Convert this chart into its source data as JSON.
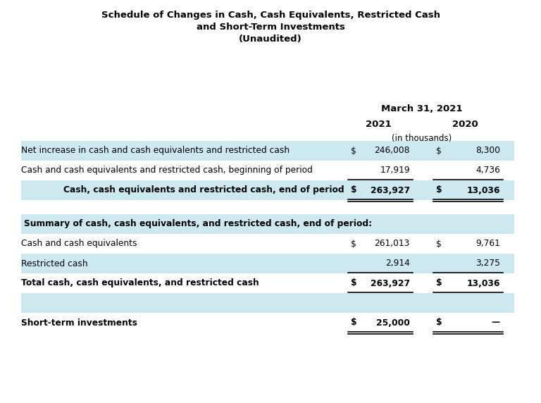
{
  "title_lines": [
    "Schedule of Changes in Cash, Cash Equivalents, Restricted Cash",
    "and Short-Term Investments",
    "(Unaudited)"
  ],
  "header_date": "March 31, 2021",
  "col_headers": [
    "2021",
    "2020"
  ],
  "col_subheader": "(in thousands)",
  "background_color": "#ffffff",
  "light_blue": "#cce8f0",
  "section1_rows": [
    {
      "label": "Net increase in cash and cash equivalents and restricted cash",
      "val2021_dollar": "$",
      "val2021_num": "246,008",
      "val2020_dollar": "$",
      "val2020_num": "8,300",
      "bold": false,
      "bg": "#cce8f0",
      "underline": false,
      "double_underline": false,
      "indent": false
    },
    {
      "label": "Cash and cash equivalents and restricted cash, beginning of period",
      "val2021_dollar": "",
      "val2021_num": "17,919",
      "val2020_dollar": "",
      "val2020_num": "4,736",
      "bold": false,
      "bg": "#ffffff",
      "underline": true,
      "double_underline": false,
      "indent": false
    },
    {
      "label": "Cash, cash equivalents and restricted cash, end of period",
      "val2021_dollar": "$",
      "val2021_num": "263,927",
      "val2020_dollar": "$",
      "val2020_num": "13,036",
      "bold": true,
      "bg": "#cce8f0",
      "underline": false,
      "double_underline": true,
      "indent": true
    }
  ],
  "section2_header": "Summary of cash, cash equivalents, and restricted cash, end of period:",
  "section2_rows": [
    {
      "label": "Cash and cash equivalents",
      "val2021_dollar": "$",
      "val2021_num": "261,013",
      "val2020_dollar": "$",
      "val2020_num": "9,761",
      "bold": false,
      "bg": "#ffffff",
      "underline": false,
      "double_underline": false,
      "indent": false
    },
    {
      "label": "Restricted cash",
      "val2021_dollar": "",
      "val2021_num": "2,914",
      "val2020_dollar": "",
      "val2020_num": "3,275",
      "bold": false,
      "bg": "#cce8f0",
      "underline": true,
      "double_underline": false,
      "indent": false
    },
    {
      "label": "Total cash, cash equivalents, and restricted cash",
      "val2021_dollar": "$",
      "val2021_num": "263,927",
      "val2020_dollar": "$",
      "val2020_num": "13,036",
      "bold": true,
      "bg": "#ffffff",
      "underline": false,
      "double_underline": false,
      "indent": false
    },
    {
      "label": "",
      "val2021_dollar": "",
      "val2021_num": "",
      "val2020_dollar": "",
      "val2020_num": "",
      "bold": false,
      "bg": "#cce8f0",
      "underline": false,
      "double_underline": false,
      "indent": false
    },
    {
      "label": "Short-term investments",
      "val2021_dollar": "$",
      "val2021_num": "25,000",
      "val2020_dollar": "$",
      "val2020_num": "—",
      "bold": true,
      "bg": "#ffffff",
      "underline": false,
      "double_underline": true,
      "indent": false
    }
  ]
}
